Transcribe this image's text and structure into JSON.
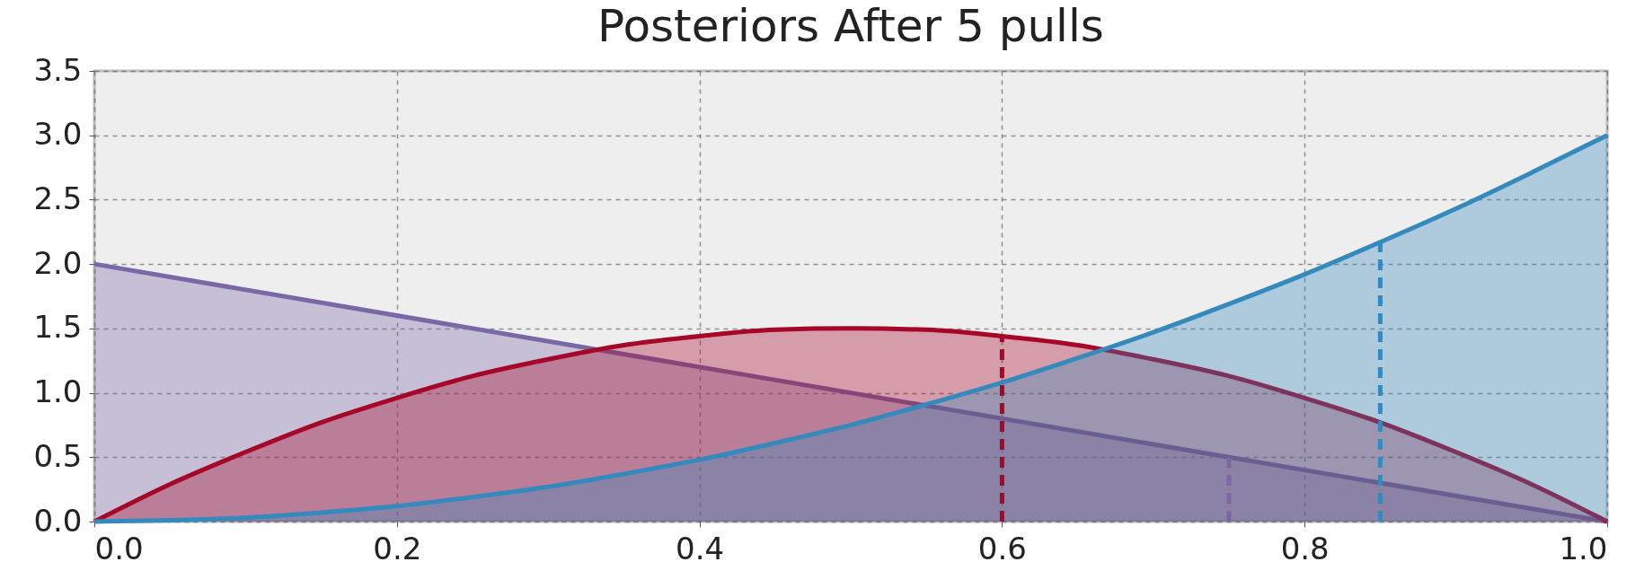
{
  "chart_data": {
    "type": "area",
    "title": "Posteriors After 5 pulls",
    "xlim": [
      0,
      1
    ],
    "ylim": [
      0,
      3.5
    ],
    "xticks": [
      {
        "value": 0,
        "label": "0.0"
      },
      0.2,
      0.4,
      0.6,
      0.8,
      {
        "value": 1,
        "label": "1.0"
      }
    ],
    "yticks": [
      {
        "value": 0,
        "label": "0.0"
      },
      0.5,
      {
        "value": 1,
        "label": "1.0"
      },
      1.5,
      {
        "value": 2,
        "label": "2.0"
      },
      2.5,
      {
        "value": 3,
        "label": "3.0"
      },
      3.5
    ],
    "grid": true,
    "series": [
      {
        "color": "#7a68a6",
        "x": [
          0,
          1
        ],
        "values": [
          2,
          0
        ]
      },
      {
        "color": "#a60628",
        "x": [
          0,
          0.05,
          0.1,
          0.15,
          0.2,
          0.25,
          0.3,
          0.35,
          0.4,
          0.45,
          0.5,
          0.55,
          0.6,
          0.65,
          0.7,
          0.75,
          0.8,
          0.85,
          0.9,
          0.95,
          1
        ],
        "values": [
          0,
          0.29,
          0.54,
          0.77,
          0.96,
          1.13,
          1.26,
          1.37,
          1.44,
          1.49,
          1.5,
          1.49,
          1.44,
          1.37,
          1.26,
          1.13,
          0.96,
          0.77,
          0.54,
          0.29,
          0
        ]
      },
      {
        "color": "#348abd",
        "x": [
          0,
          0.05,
          0.1,
          0.15,
          0.2,
          0.25,
          0.3,
          0.35,
          0.4,
          0.45,
          0.5,
          0.55,
          0.6,
          0.65,
          0.7,
          0.75,
          0.8,
          0.85,
          0.9,
          0.95,
          1
        ],
        "values": [
          0,
          0.01,
          0.03,
          0.07,
          0.12,
          0.19,
          0.27,
          0.37,
          0.48,
          0.61,
          0.75,
          0.91,
          1.08,
          1.27,
          1.47,
          1.69,
          1.92,
          2.17,
          2.43,
          2.71,
          3
        ]
      },
      {
        "type": "line",
        "line_style": "dashed",
        "color": "#a60628",
        "x": [
          0.6,
          0.6
        ],
        "values": [
          0,
          1.44
        ]
      },
      {
        "type": "line",
        "line_style": "dashed",
        "color": "#7a68a6",
        "x": [
          0.75,
          0.75
        ],
        "values": [
          0,
          0.5
        ]
      },
      {
        "type": "line",
        "line_style": "dashed",
        "color": "#348abd",
        "x": [
          0.85,
          0.85
        ],
        "values": [
          0,
          2.17
        ]
      }
    ]
  }
}
